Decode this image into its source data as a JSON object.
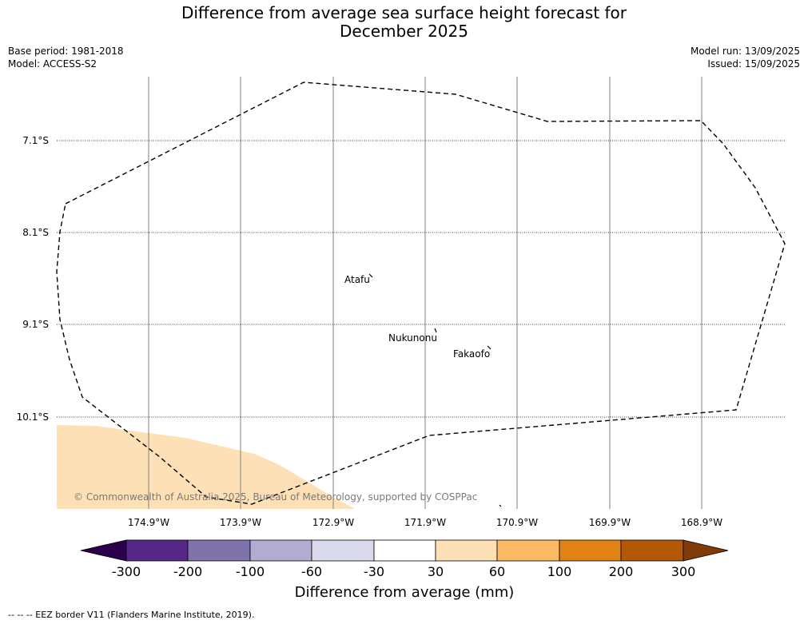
{
  "header": {
    "title_line1": "Difference from average sea surface height forecast for",
    "title_line2": "December 2025",
    "base_period": "Base period: 1981-2018",
    "model": "Model: ACCESS-S2",
    "model_run": "Model run: 13/09/2025",
    "issued": "Issued: 15/09/2025"
  },
  "map": {
    "lat_labels": [
      "7.1°S",
      "8.1°S",
      "9.1°S",
      "10.1°S"
    ],
    "lon_labels": [
      "174.9°W",
      "173.9°W",
      "172.9°W",
      "171.9°W",
      "170.9°W",
      "169.9°W",
      "168.9°W"
    ],
    "places": [
      {
        "name": "Atafu"
      },
      {
        "name": "Nukunonu"
      },
      {
        "name": "Fakaofo"
      }
    ],
    "copyright": "© Commonwealth of Australia 2025, Bureau of Meteorology, supported by COSPPac",
    "land_color": "#fde0b6",
    "eez_line_style": "dashed"
  },
  "colorbar": {
    "label": "Difference from average (mm)",
    "tick_labels": [
      "-300",
      "-200",
      "-100",
      "-60",
      "-30",
      "30",
      "60",
      "100",
      "200",
      "300"
    ],
    "colors": [
      "#2d004b",
      "#542788",
      "#8073ac",
      "#b2abd2",
      "#d8daeb",
      "#ffffff",
      "#fee0b6",
      "#fdb863",
      "#e08214",
      "#b35806",
      "#7f3b08"
    ]
  },
  "footnote": "--  --  -- EEZ border V11 (Flanders Marine Institute, 2019)."
}
